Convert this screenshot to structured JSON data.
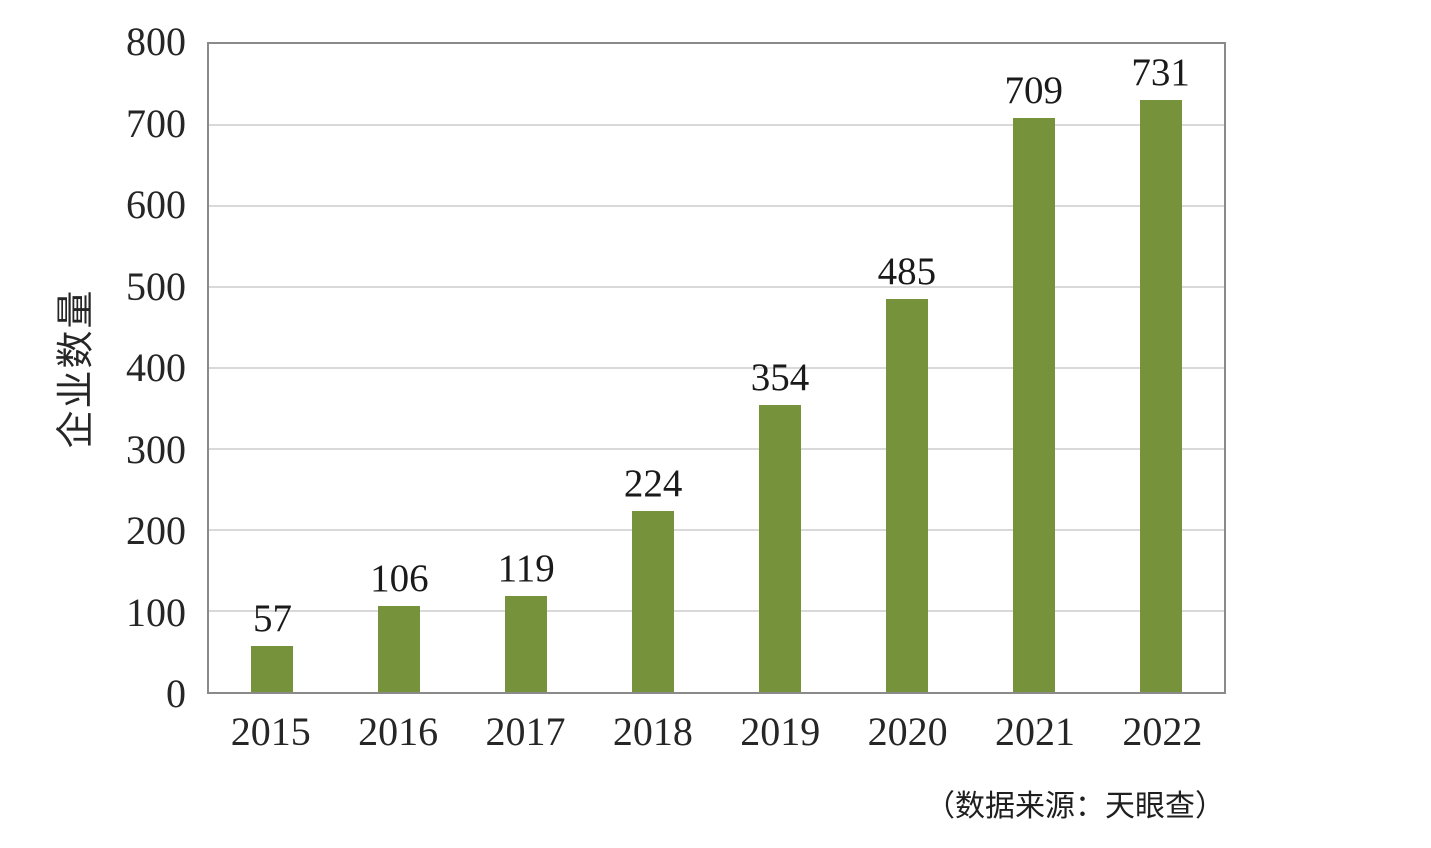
{
  "chart_data": {
    "type": "bar",
    "categories": [
      "2015",
      "2016",
      "2017",
      "2018",
      "2019",
      "2020",
      "2021",
      "2022"
    ],
    "values": [
      57,
      106,
      119,
      224,
      354,
      485,
      709,
      731
    ],
    "title": "",
    "xlabel": "",
    "ylabel": "企业数量",
    "ylim": [
      0,
      800
    ],
    "yticks": [
      0,
      100,
      200,
      300,
      400,
      500,
      600,
      700,
      800
    ],
    "grid": true,
    "legend": "none",
    "data_labels": true,
    "source_note": "（数据来源：天眼查）"
  },
  "colors": {
    "bar": "#76933C",
    "gridline": "#D9D9D9",
    "plot_border": "#8A8A8A",
    "text": "#1A1A1A"
  }
}
